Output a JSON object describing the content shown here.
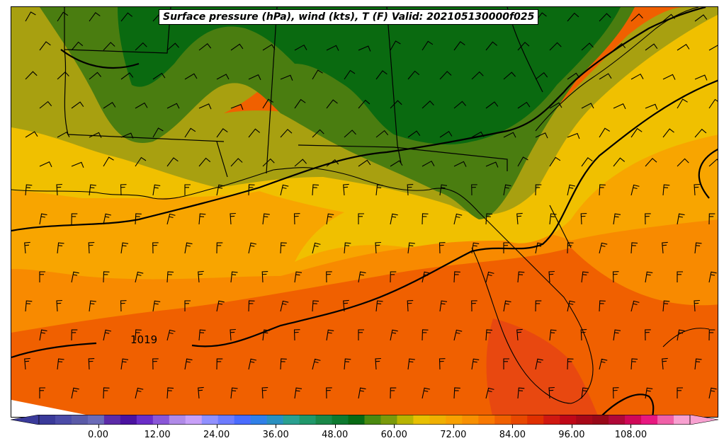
{
  "title": "Surface pressure (hPa), wind (kts), T (F) Valid: 202105130000f025",
  "isobar_labels": [
    {
      "text": "1019"
    }
  ],
  "colorbar": {
    "min": -12,
    "max": 120,
    "tick_labels": [
      "0.00",
      "12.00",
      "24.00",
      "36.00",
      "48.00",
      "60.00",
      "72.00",
      "84.00",
      "96.00",
      "108.00"
    ],
    "tick_values": [
      0,
      12,
      24,
      36,
      48,
      60,
      72,
      84,
      96,
      108
    ],
    "colors": [
      "#3a3a9a",
      "#4b4ba8",
      "#5a5aa8",
      "#6b6bb8",
      "#5c2ba8",
      "#4b12a0",
      "#6a2dc8",
      "#8a56d8",
      "#b08ae8",
      "#c8a0f8",
      "#9090ff",
      "#6e7cff",
      "#4a6cff",
      "#3080e8",
      "#2a90c0",
      "#2aa090",
      "#20986a",
      "#1a8848",
      "#0e7a30",
      "#086a14",
      "#4a8a10",
      "#7a9a0a",
      "#b8b400",
      "#e8c000",
      "#f0b000",
      "#f8a000",
      "#f89000",
      "#f87800",
      "#f06000",
      "#e84800",
      "#e03000",
      "#d01810",
      "#c00818",
      "#a80818",
      "#980818",
      "#b00838",
      "#d00858",
      "#e81880",
      "#f060a8",
      "#f8a0d0"
    ]
  },
  "colors": {
    "green_dark": "#0a6a10",
    "green": "#4a7d10",
    "olive": "#a8a010",
    "yellow": "#f0c000",
    "orange_light": "#f8a500",
    "orange": "#f88a00",
    "orange_dark": "#f06000",
    "red_orange": "#e84810"
  }
}
